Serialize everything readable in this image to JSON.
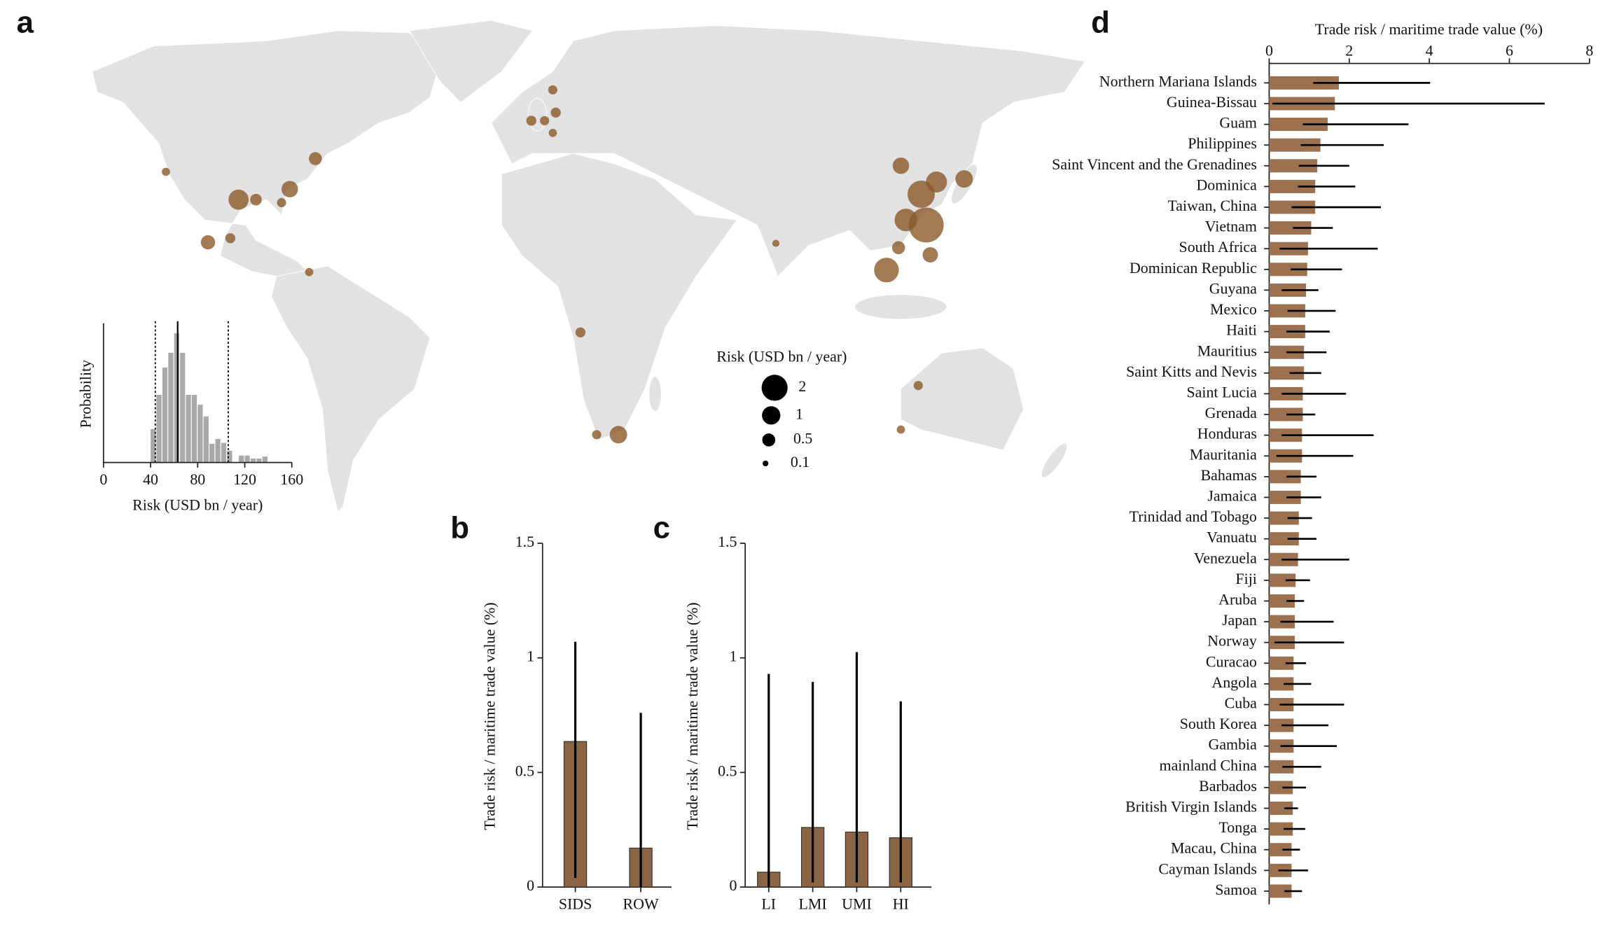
{
  "chart_data": [
    {
      "type": "bubble_map",
      "panel": "a",
      "legend_title": "Risk (USD bn / year)",
      "legend_sizes": [
        2,
        1,
        0.5,
        0.1
      ],
      "color": "#8b5a2b",
      "x": [
        124.3,
        122.6,
        117.4,
        115.7,
        127.8,
        137.2,
        110.8,
        125.7,
        -109.4,
        -103.5,
        -92.0,
        -83.3,
        -119.8,
        -112.2,
        19.7,
        6.8,
        -2.6,
        -9.9,
        -5.4,
        12.3,
        121.6,
        115.7,
        -85.4,
        -134.1,
        -94.8,
        114.9,
        73.2,
        -1.6,
        -2.6
      ],
      "y": [
        24.6,
        33.7,
        26.1,
        42.1,
        37.3,
        38.2,
        11.3,
        15.8,
        32.1,
        32.1,
        35.2,
        44.2,
        19.5,
        20.7,
        -37.3,
        -7.1,
        64.5,
        55.4,
        55.4,
        -37.3,
        -22.8,
        -35.8,
        10.7,
        40.3,
        31.2,
        17.9,
        19.2,
        57.8,
        51.8
      ],
      "sizes": [
        3.6,
        2.2,
        1.5,
        0.8,
        1.3,
        0.9,
        1.8,
        0.7,
        1.2,
        0.4,
        0.8,
        0.5,
        0.6,
        0.3,
        0.9,
        0.3,
        0.25,
        0.3,
        0.25,
        0.25,
        0.25,
        0.2,
        0.2,
        0.2,
        0.25,
        0.5,
        0.15,
        0.3,
        0.2
      ]
    },
    {
      "type": "histogram",
      "xlabel": "Risk (USD bn / year)",
      "ylabel": "Probability",
      "color": "#a9a9a9",
      "bins": [
        40,
        45,
        50,
        55,
        60,
        65,
        70,
        75,
        80,
        85,
        90,
        95,
        100,
        105,
        110,
        115,
        120,
        125,
        130,
        135,
        140
      ],
      "counts": [
        34,
        69,
        97,
        112,
        132,
        112,
        69,
        69,
        59,
        47,
        19,
        24,
        20,
        12,
        0,
        7,
        7,
        4,
        4,
        6
      ],
      "xlim": [
        0,
        160
      ],
      "xticks": [
        0,
        40,
        80,
        120,
        160
      ],
      "ylim": [
        0,
        140
      ],
      "median": 63,
      "interval": [
        44,
        106
      ]
    },
    {
      "type": "bar",
      "panel": "b",
      "ylabel": "Trade risk / maritime trade value (%)",
      "color": "#8b6443",
      "categories": [
        "SIDS",
        "ROW"
      ],
      "values": [
        0.635,
        0.17
      ],
      "lower": [
        0.04,
        0.0
      ],
      "upper": [
        1.07,
        0.76
      ],
      "ylim": [
        0,
        1.5
      ],
      "yticks": [
        0,
        0.5,
        1,
        1.5
      ]
    },
    {
      "type": "bar",
      "panel": "c",
      "ylabel": "Trade risk / maritime trade value (%)",
      "color": "#8b6443",
      "categories": [
        "LI",
        "LMI",
        "UMI",
        "HI"
      ],
      "values": [
        0.065,
        0.26,
        0.24,
        0.215
      ],
      "lower": [
        0.0,
        0.02,
        0.02,
        0.02
      ],
      "upper": [
        0.93,
        0.895,
        1.025,
        0.81
      ],
      "ylim": [
        0,
        1.5
      ],
      "yticks": [
        0,
        0.5,
        1,
        1.5
      ]
    },
    {
      "type": "barh",
      "panel": "d",
      "xlabel": "Trade risk / maritime trade value (%)",
      "color": "#9c7150",
      "categories": [
        "Northern Mariana Islands",
        "Guinea-Bissau",
        "Guam",
        "Philippines",
        "Saint Vincent and the Grenadines",
        "Dominica",
        "Taiwan, China",
        "Vietnam",
        "South Africa",
        "Dominican Republic",
        "Guyana",
        "Mexico",
        "Haiti",
        "Mauritius",
        "Saint Kitts and Nevis",
        "Saint Lucia",
        "Grenada",
        "Honduras",
        "Mauritania",
        "Bahamas",
        "Jamaica",
        "Trinidad and Tobago",
        "Vanuatu",
        "Venezuela",
        "Fiji",
        "Aruba",
        "Japan",
        "Norway",
        "Curacao",
        "Angola",
        "Cuba",
        "South Korea",
        "Gambia",
        "mainland China",
        "Barbados",
        "British Virgin Islands",
        "Tonga",
        "Macau, China",
        "Cayman Islands",
        "Samoa"
      ],
      "values": [
        1.74,
        1.64,
        1.46,
        1.28,
        1.2,
        1.15,
        1.15,
        1.05,
        0.97,
        0.95,
        0.92,
        0.9,
        0.9,
        0.87,
        0.87,
        0.84,
        0.84,
        0.82,
        0.82,
        0.79,
        0.79,
        0.74,
        0.74,
        0.72,
        0.66,
        0.64,
        0.64,
        0.64,
        0.61,
        0.61,
        0.61,
        0.61,
        0.61,
        0.61,
        0.59,
        0.59,
        0.59,
        0.56,
        0.56,
        0.56
      ],
      "lower": [
        1.1,
        0.08,
        0.84,
        0.79,
        0.74,
        0.72,
        0.56,
        0.59,
        0.26,
        0.54,
        0.31,
        0.46,
        0.43,
        0.43,
        0.51,
        0.31,
        0.43,
        0.31,
        0.18,
        0.43,
        0.43,
        0.46,
        0.46,
        0.31,
        0.41,
        0.43,
        0.28,
        0.13,
        0.41,
        0.36,
        0.26,
        0.31,
        0.28,
        0.33,
        0.33,
        0.38,
        0.36,
        0.33,
        0.23,
        0.38
      ],
      "upper": [
        4.02,
        6.88,
        3.48,
        2.86,
        2.0,
        2.15,
        2.79,
        1.59,
        2.71,
        1.82,
        1.23,
        1.66,
        1.51,
        1.43,
        1.3,
        1.92,
        1.15,
        2.61,
        2.1,
        1.18,
        1.3,
        1.07,
        1.18,
        2.0,
        1.02,
        0.87,
        1.61,
        1.87,
        0.92,
        1.05,
        1.87,
        1.48,
        1.69,
        1.3,
        0.92,
        0.72,
        0.9,
        0.77,
        0.97,
        0.82
      ],
      "xlim": [
        0,
        8
      ],
      "xticks": [
        0,
        2,
        4,
        6,
        8
      ]
    }
  ]
}
